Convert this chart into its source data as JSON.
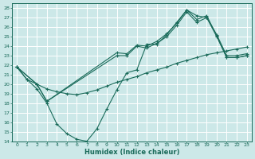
{
  "xlabel": "Humidex (Indice chaleur)",
  "xlim": [
    -0.5,
    23.5
  ],
  "ylim": [
    14,
    28.5
  ],
  "yticks": [
    14,
    15,
    16,
    17,
    18,
    19,
    20,
    21,
    22,
    23,
    24,
    25,
    26,
    27,
    28
  ],
  "xticks": [
    0,
    1,
    2,
    3,
    4,
    5,
    6,
    7,
    8,
    9,
    10,
    11,
    12,
    13,
    14,
    15,
    16,
    17,
    18,
    19,
    20,
    21,
    22,
    23
  ],
  "bg_color": "#cce8e8",
  "grid_color": "#ffffff",
  "line_color": "#1a6b5a",
  "line1_x": [
    0,
    1,
    2,
    3,
    4,
    5,
    6,
    7,
    8,
    9,
    10,
    11,
    12,
    13,
    14,
    15,
    16,
    17,
    18,
    19,
    20,
    21,
    22,
    23
  ],
  "line1_y": [
    21.8,
    20.5,
    19.5,
    18.0,
    15.8,
    14.8,
    14.2,
    14.0,
    15.3,
    17.4,
    19.4,
    21.2,
    21.5,
    24.2,
    24.2,
    25.2,
    26.5,
    27.8,
    27.2,
    27.0,
    25.2,
    23.0,
    23.0,
    23.2
  ],
  "line2_x": [
    0,
    2,
    3,
    10,
    11,
    12,
    13,
    14,
    15,
    16,
    17,
    18,
    19,
    20,
    21,
    22,
    23
  ],
  "line2_y": [
    21.8,
    20.0,
    18.2,
    23.3,
    23.2,
    24.1,
    24.0,
    24.5,
    25.3,
    26.4,
    27.8,
    26.8,
    27.2,
    25.1,
    22.8,
    22.8,
    23.0
  ],
  "line3_x": [
    0,
    2,
    3,
    10,
    11,
    12,
    13,
    14,
    15,
    16,
    17,
    18,
    19,
    20,
    21,
    22,
    23
  ],
  "line3_y": [
    21.8,
    20.0,
    18.2,
    23.0,
    23.0,
    24.0,
    23.8,
    24.3,
    25.0,
    26.2,
    27.6,
    26.5,
    27.0,
    25.0,
    22.8,
    22.8,
    23.0
  ],
  "line4_x": [
    0,
    1,
    2,
    3,
    4,
    5,
    6,
    7,
    8,
    9,
    10,
    11,
    12,
    13,
    14,
    15,
    16,
    17,
    18,
    19,
    20,
    21,
    22,
    23
  ],
  "line4_y": [
    21.8,
    20.5,
    20.0,
    19.5,
    19.2,
    19.0,
    18.9,
    19.1,
    19.4,
    19.8,
    20.2,
    20.5,
    20.8,
    21.2,
    21.5,
    21.8,
    22.2,
    22.5,
    22.8,
    23.1,
    23.3,
    23.5,
    23.7,
    23.9
  ]
}
